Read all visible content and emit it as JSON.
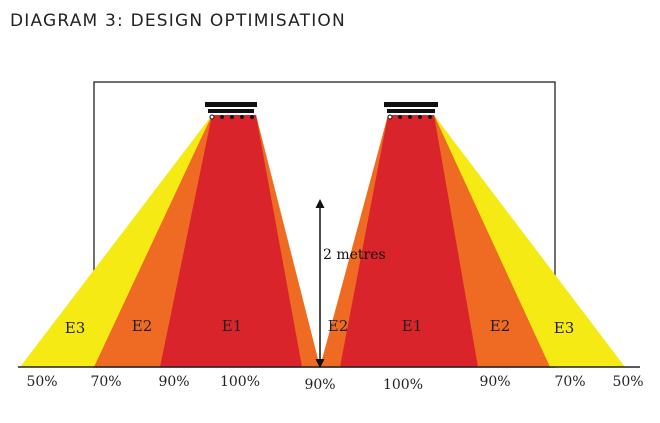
{
  "title": "DIAGRAM 3: DESIGN OPTIMISATION",
  "height_label": "2 metres",
  "zones": {
    "left_outer": "E3",
    "left_mid": "E2",
    "left_core": "E1",
    "center": "E2",
    "right_core": "E1",
    "right_mid": "E2",
    "right_outer": "E3"
  },
  "percentages": [
    "50%",
    "70%",
    "90%",
    "100%",
    "90%",
    "100%",
    "90%",
    "70%",
    "50%"
  ],
  "colors": {
    "yellow": "#f6ea14",
    "orange": "#ef6a22",
    "red": "#d9242b",
    "frame": "#222222",
    "fixture": "#111111"
  }
}
